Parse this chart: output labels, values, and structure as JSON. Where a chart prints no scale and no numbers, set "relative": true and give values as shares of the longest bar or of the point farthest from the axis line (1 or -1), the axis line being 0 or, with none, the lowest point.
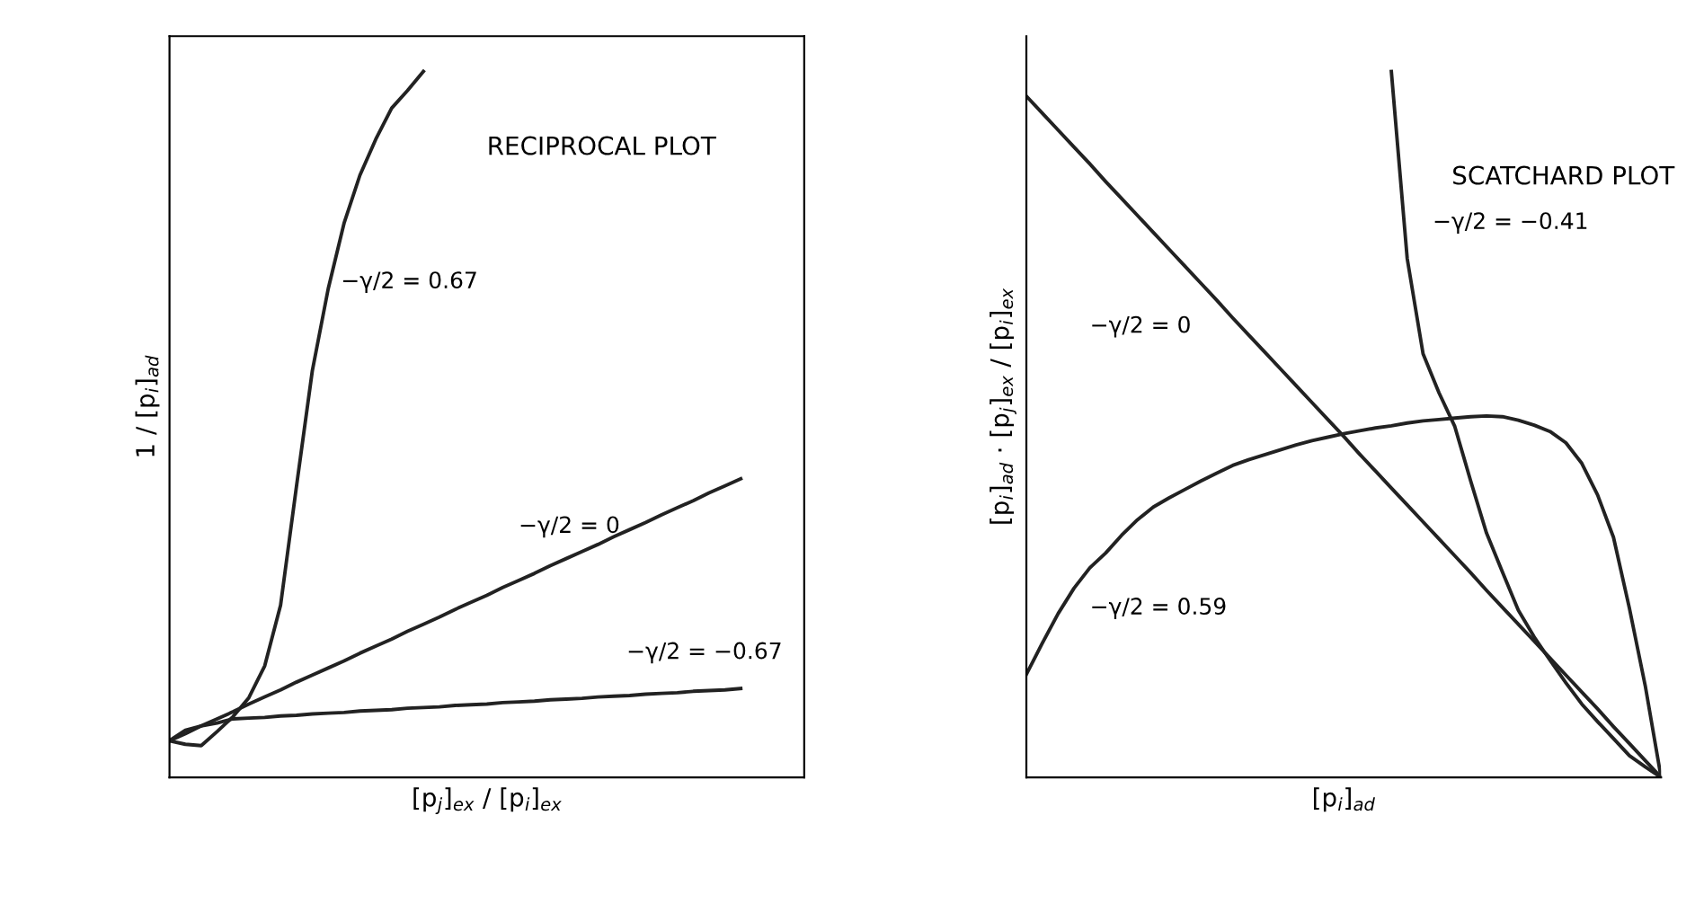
{
  "chart_data": [
    {
      "type": "line",
      "title": "RECIPROCAL PLOT",
      "xlabel": "[p$_{j}$]$_{ex}$ / [p$_{i}$]$_{ex}$",
      "ylabel": "1 / [p$_{i}$]$_{ad}$",
      "relative": true,
      "tick_labels": false,
      "categories": [
        null,
        null,
        null,
        null,
        null,
        null,
        null,
        null,
        null,
        null,
        null,
        null,
        null,
        null,
        null,
        null,
        null,
        null,
        null,
        null,
        null,
        null,
        null,
        null,
        null,
        null,
        null,
        null,
        null,
        null,
        null,
        null,
        null,
        null,
        null,
        null,
        null,
        null,
        null,
        null,
        null
      ],
      "series": [
        {
          "color": "#222222",
          "values": [
            0.052,
            0.047,
            0.045,
            0.065,
            0.086,
            0.113,
            0.158,
            0.244,
            0.412,
            0.576,
            0.692,
            0.785,
            0.853,
            0.904,
            0.948,
            0.973,
            1.0,
            null,
            null,
            null,
            null,
            null,
            null,
            null,
            null,
            null,
            null,
            null,
            null,
            null,
            null,
            null,
            null,
            null,
            null,
            null,
            null,
            null,
            null,
            null,
            null
          ]
        },
        {
          "color": "#222222",
          "values": [
            0.052,
            0.062,
            0.073,
            0.083,
            0.093,
            0.104,
            0.114,
            0.124,
            0.135,
            0.145,
            0.155,
            0.165,
            0.176,
            0.186,
            0.196,
            0.207,
            0.217,
            0.227,
            0.238,
            0.248,
            0.258,
            0.269,
            0.279,
            0.289,
            0.3,
            0.31,
            0.32,
            0.33,
            0.341,
            0.351,
            0.361,
            0.372,
            0.382,
            0.392,
            0.403,
            0.413,
            0.423,
            null,
            null,
            null,
            null
          ]
        },
        {
          "color": "#222222",
          "values": [
            0.052,
            0.067,
            0.073,
            0.077,
            0.083,
            0.084,
            0.085,
            0.087,
            0.088,
            0.09,
            0.091,
            0.092,
            0.094,
            0.095,
            0.096,
            0.098,
            0.099,
            0.1,
            0.102,
            0.103,
            0.104,
            0.106,
            0.107,
            0.108,
            0.11,
            0.111,
            0.112,
            0.114,
            0.115,
            0.116,
            0.118,
            0.119,
            0.12,
            0.122,
            0.123,
            0.124,
            0.126,
            null,
            null,
            null,
            null
          ]
        }
      ],
      "annotations": [
        "−γ/2 = 0.67",
        "−γ/2 = 0",
        "−γ/2 = −0.67"
      ]
    },
    {
      "type": "line",
      "title": "SCATCHARD PLOT",
      "xlabel": "[p$_{i}$]$_{ad}$",
      "ylabel": "[p$_{i}$]$_{ad}$ · [p$_{j}$]$_{ex}$ / [p$_{i}$]$_{ex}$",
      "relative": true,
      "tick_labels": false,
      "categories": [
        null,
        null,
        null,
        null,
        null,
        null,
        null,
        null,
        null,
        null,
        null,
        null,
        null,
        null,
        null,
        null,
        null,
        null,
        null,
        null,
        null,
        null,
        null,
        null,
        null,
        null,
        null,
        null,
        null,
        null,
        null,
        null,
        null,
        null,
        null,
        null,
        null,
        null,
        null,
        null,
        null
      ],
      "series": [
        {
          "color": "#222222",
          "values": [
            0.965,
            0.941,
            0.917,
            0.893,
            0.869,
            0.844,
            0.82,
            0.796,
            0.772,
            0.748,
            0.724,
            0.7,
            0.676,
            0.651,
            0.627,
            0.603,
            0.579,
            0.555,
            0.531,
            0.507,
            0.483,
            0.458,
            0.434,
            0.41,
            0.386,
            0.362,
            0.338,
            0.314,
            0.29,
            0.265,
            0.241,
            0.217,
            0.193,
            0.169,
            0.145,
            0.121,
            0.097,
            0.072,
            0.048,
            0.024,
            0.0
          ]
        },
        {
          "color": "#222222",
          "values": [
            null,
            null,
            null,
            null,
            null,
            null,
            null,
            null,
            null,
            null,
            null,
            null,
            null,
            null,
            null,
            null,
            null,
            null,
            null,
            null,
            null,
            null,
            null,
            1.0,
            0.735,
            0.6,
            0.545,
            0.497,
            0.42,
            0.346,
            0.291,
            0.237,
            0.199,
            0.166,
            0.134,
            0.104,
            0.079,
            0.055,
            0.031,
            0.015,
            0.0
          ]
        },
        {
          "color": "#222222",
          "values": [
            0.146,
            0.19,
            0.232,
            0.268,
            0.297,
            0.318,
            0.343,
            0.365,
            0.383,
            0.396,
            0.408,
            0.42,
            0.431,
            0.442,
            0.45,
            0.457,
            0.464,
            0.471,
            0.477,
            0.482,
            0.487,
            0.491,
            0.495,
            0.498,
            0.502,
            0.505,
            0.507,
            0.509,
            0.511,
            0.512,
            0.511,
            0.506,
            0.499,
            0.49,
            0.474,
            0.445,
            0.4,
            0.34,
            0.24,
            0.13,
            0.0
          ]
        }
      ],
      "annotations": [
        "−γ/2 = 0",
        "−γ/2 = −0.41",
        "−γ/2 = 0.59"
      ]
    }
  ]
}
